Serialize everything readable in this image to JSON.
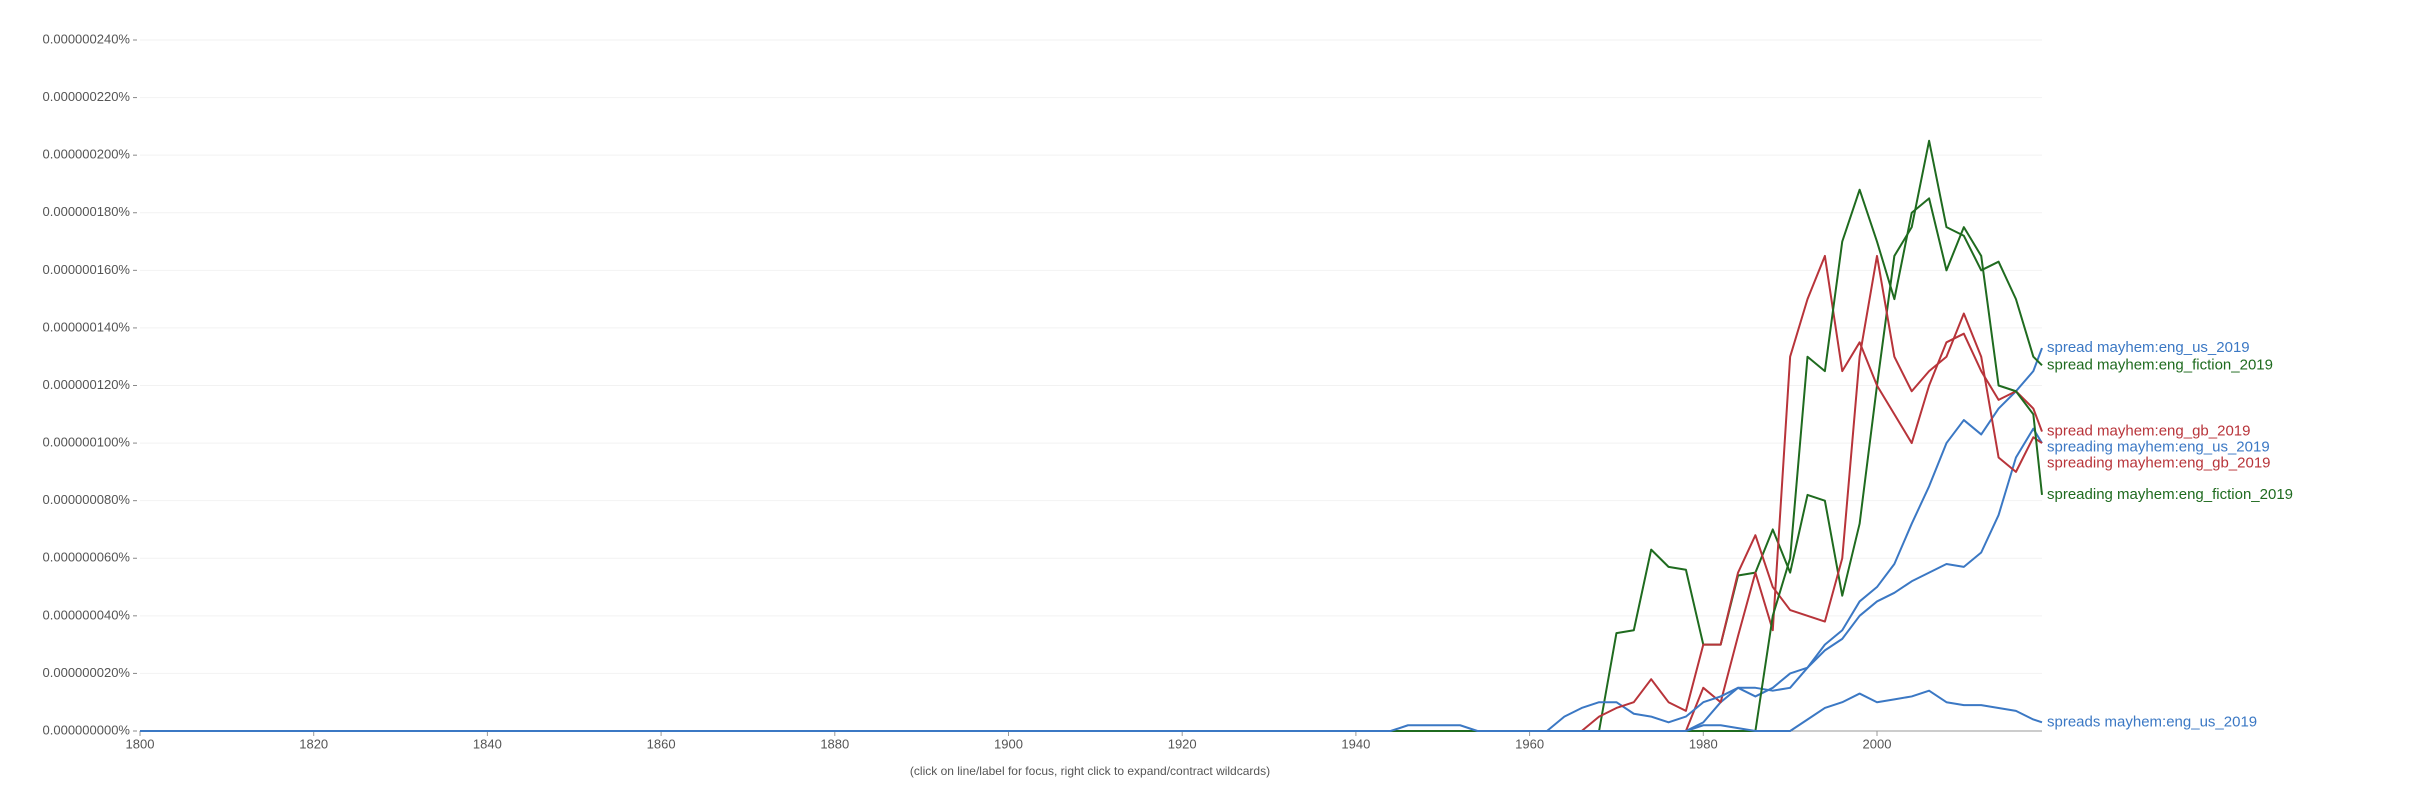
{
  "chart_data": {
    "type": "line",
    "footnote": "(click on line/label for focus, right click to expand/contract wildcards)",
    "x": [
      1800,
      1944,
      1946,
      1950,
      1952,
      1954,
      1960,
      1962,
      1964,
      1966,
      1968,
      1970,
      1972,
      1974,
      1976,
      1978,
      1980,
      1982,
      1984,
      1986,
      1988,
      1990,
      1992,
      1994,
      1996,
      1998,
      2000,
      2002,
      2004,
      2006,
      2008,
      2010,
      2012,
      2014,
      2016,
      2018,
      2019
    ],
    "xlim": [
      1800,
      2019
    ],
    "xticks": [
      1800,
      1820,
      1840,
      1860,
      1880,
      1900,
      1920,
      1940,
      1960,
      1980,
      2000
    ],
    "ylim": [
      0,
      2.4e-07
    ],
    "yticks": [
      {
        "value": 0,
        "label": "0.000000000%"
      },
      {
        "value": 2e-08,
        "label": "0.000000020%"
      },
      {
        "value": 4e-08,
        "label": "0.000000040%"
      },
      {
        "value": 6e-08,
        "label": "0.000000060%"
      },
      {
        "value": 8e-08,
        "label": "0.000000080%"
      },
      {
        "value": 1e-07,
        "label": "0.000000100%"
      },
      {
        "value": 1.2e-07,
        "label": "0.000000120%"
      },
      {
        "value": 1.4e-07,
        "label": "0.000000140%"
      },
      {
        "value": 1.6e-07,
        "label": "0.000000160%"
      },
      {
        "value": 1.8e-07,
        "label": "0.000000180%"
      },
      {
        "value": 2e-07,
        "label": "0.000000200%"
      },
      {
        "value": 2.2e-07,
        "label": "0.000000220%"
      },
      {
        "value": 2.4e-07,
        "label": "0.000000240%"
      }
    ],
    "grid": true,
    "series": [
      {
        "name": "spread mayhem:eng_us_2019",
        "color": "#3b78c4",
        "values": [
          0,
          0,
          0,
          0,
          0,
          0,
          0,
          0,
          0,
          0,
          0,
          0,
          0,
          0,
          0,
          0,
          3e-09,
          1e-08,
          1.5e-08,
          1.5e-08,
          1.4e-08,
          1.5e-08,
          2.2e-08,
          3e-08,
          3.5e-08,
          4.5e-08,
          5e-08,
          5.8e-08,
          7.2e-08,
          8.5e-08,
          1e-07,
          1.08e-07,
          1.03e-07,
          1.12e-07,
          1.18e-07,
          1.25e-07,
          1.33e-07
        ]
      },
      {
        "name": "spread mayhem:eng_fiction_2019",
        "color": "#1f6b1f",
        "values": [
          0,
          0,
          0,
          0,
          0,
          0,
          0,
          0,
          0,
          0,
          0,
          3.4e-08,
          3.5e-08,
          6.3e-08,
          5.7e-08,
          5.6e-08,
          3e-08,
          3e-08,
          5.4e-08,
          5.5e-08,
          7e-08,
          5.5e-08,
          8.2e-08,
          8e-08,
          4.7e-08,
          7.2e-08,
          1.2e-07,
          1.65e-07,
          1.75e-07,
          2.05e-07,
          1.75e-07,
          1.72e-07,
          1.6e-07,
          1.63e-07,
          1.5e-07,
          1.3e-07,
          1.27e-07
        ]
      },
      {
        "name": "spread mayhem:eng_gb_2019",
        "color": "#b8343a",
        "values": [
          0,
          0,
          0,
          0,
          0,
          0,
          0,
          0,
          0,
          0,
          0,
          0,
          0,
          0,
          0,
          0,
          1.5e-08,
          1e-08,
          3.3e-08,
          5.5e-08,
          3.5e-08,
          1.3e-07,
          1.5e-07,
          1.65e-07,
          1.25e-07,
          1.35e-07,
          1.2e-07,
          1.1e-07,
          1e-07,
          1.2e-07,
          1.35e-07,
          1.38e-07,
          1.25e-07,
          1.15e-07,
          1.18e-07,
          1.12e-07,
          1.04e-07
        ]
      },
      {
        "name": "spreading mayhem:eng_us_2019",
        "color": "#3b78c4",
        "values": [
          0,
          0,
          0,
          0,
          0,
          0,
          0,
          0,
          5e-09,
          8e-09,
          1e-08,
          1e-08,
          6e-09,
          5e-09,
          3e-09,
          5e-09,
          1e-08,
          1.2e-08,
          1.5e-08,
          1.2e-08,
          1.5e-08,
          2e-08,
          2.2e-08,
          2.8e-08,
          3.2e-08,
          4e-08,
          4.5e-08,
          4.8e-08,
          5.2e-08,
          5.5e-08,
          5.8e-08,
          5.7e-08,
          6.2e-08,
          7.5e-08,
          9.5e-08,
          1.05e-07,
          1e-07
        ]
      },
      {
        "name": "spreading mayhem:eng_gb_2019",
        "color": "#b8343a",
        "values": [
          0,
          0,
          0,
          0,
          0,
          0,
          0,
          0,
          0,
          0,
          5e-09,
          8e-09,
          1e-08,
          1.8e-08,
          1e-08,
          7e-09,
          3e-08,
          3e-08,
          5.5e-08,
          6.8e-08,
          5e-08,
          4.2e-08,
          4e-08,
          3.8e-08,
          6e-08,
          1.3e-07,
          1.65e-07,
          1.3e-07,
          1.18e-07,
          1.25e-07,
          1.3e-07,
          1.45e-07,
          1.3e-07,
          9.5e-08,
          9e-08,
          1.02e-07,
          1e-07
        ]
      },
      {
        "name": "spreading mayhem:eng_fiction_2019",
        "color": "#1f6b1f",
        "values": [
          0,
          0,
          0,
          0,
          0,
          0,
          0,
          0,
          0,
          0,
          0,
          0,
          0,
          0,
          0,
          0,
          0,
          0,
          0,
          0,
          4e-08,
          6e-08,
          1.3e-07,
          1.25e-07,
          1.7e-07,
          1.88e-07,
          1.7e-07,
          1.5e-07,
          1.8e-07,
          1.85e-07,
          1.6e-07,
          1.75e-07,
          1.65e-07,
          1.2e-07,
          1.18e-07,
          1.1e-07,
          8.2e-08
        ]
      },
      {
        "name": "spreads mayhem:eng_us_2019",
        "color": "#3b78c4",
        "values": [
          0,
          0,
          2e-09,
          2e-09,
          2e-09,
          0,
          0,
          0,
          0,
          0,
          0,
          0,
          0,
          0,
          0,
          0,
          2e-09,
          2e-09,
          1e-09,
          0,
          0,
          0,
          4e-09,
          8e-09,
          1e-08,
          1.3e-08,
          1e-08,
          1.1e-08,
          1.2e-08,
          1.4e-08,
          1e-08,
          9e-09,
          9e-09,
          8e-09,
          7e-09,
          4e-09,
          3e-09
        ]
      }
    ]
  }
}
